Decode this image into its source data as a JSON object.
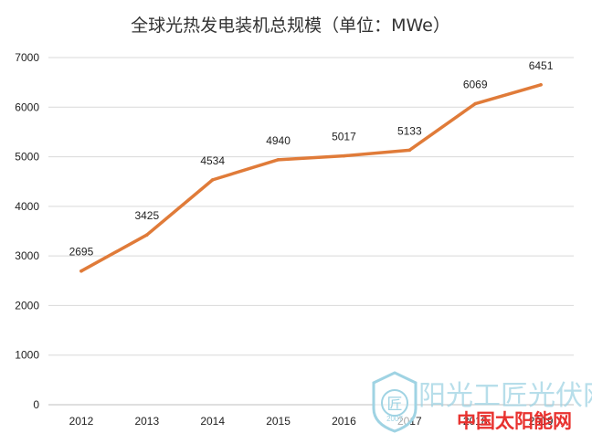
{
  "chart_data": {
    "type": "line",
    "title": "全球光热发电装机总规模（单位：MWe）",
    "categories": [
      "2012",
      "2013",
      "2014",
      "2015",
      "2016",
      "2017",
      "2018",
      "2019"
    ],
    "series": [
      {
        "name": "装机总规模",
        "values": [
          2695,
          3425,
          4534,
          4940,
          5017,
          5133,
          6069,
          6451
        ],
        "color": "#e07b39"
      }
    ],
    "data_labels": [
      "2695",
      "3425",
      "4534",
      "4940",
      "5017",
      "5133",
      "6069",
      "6451"
    ],
    "y_ticks": [
      "0",
      "1000",
      "2000",
      "3000",
      "4000",
      "5000",
      "6000",
      "7000"
    ],
    "ylim": [
      0,
      7000
    ],
    "grid": true,
    "legend": "none"
  },
  "watermark": {
    "name_text": "阳光工匠光伏网",
    "site_text": "中国太阳能网",
    "badge_glyph": "匠",
    "badge_year": "2007",
    "colors": {
      "light": "#9fd3e3",
      "red": "#e8322f"
    }
  }
}
